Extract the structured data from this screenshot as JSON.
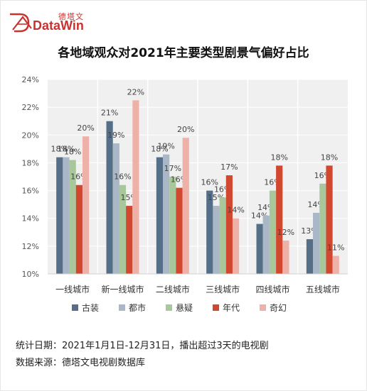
{
  "brand": {
    "name_cn": "德塔文",
    "name_en": "DataWin",
    "color": "#c8322f"
  },
  "title": "各地域观众对2021年主要类型剧景气偏好占比",
  "chart_data": {
    "type": "bar",
    "categories": [
      "一线城市",
      "新一线城市",
      "二线城市",
      "三线城市",
      "四线城市",
      "五线城市"
    ],
    "series": [
      {
        "name": "古装",
        "color": "#546f87",
        "values": [
          18.4,
          21.0,
          18.4,
          16.0,
          13.6,
          12.5
        ],
        "labels": [
          "18%",
          "21%",
          "18%",
          "16%",
          "14%",
          "13%"
        ]
      },
      {
        "name": "都市",
        "color": "#a9b7c6",
        "values": [
          18.4,
          19.4,
          18.6,
          14.9,
          14.2,
          14.4
        ],
        "labels": [
          "18%",
          "19%",
          "19%",
          "15%",
          "14%",
          "14%"
        ]
      },
      {
        "name": "悬疑",
        "color": "#a8c79a",
        "values": [
          18.2,
          16.4,
          17.0,
          15.5,
          16.0,
          16.5
        ],
        "labels": [
          "18%",
          "16%",
          "17%",
          "16%",
          "16%",
          "16%"
        ]
      },
      {
        "name": "年代",
        "color": "#d2482e",
        "values": [
          16.4,
          14.9,
          16.2,
          17.1,
          17.8,
          17.8
        ],
        "labels": [
          "16%",
          "15%",
          "16%",
          "17%",
          "18%",
          "18%"
        ]
      },
      {
        "name": "奇幻",
        "color": "#efb1a7",
        "values": [
          19.9,
          22.5,
          19.8,
          14.0,
          12.4,
          11.3
        ],
        "labels": [
          "20%",
          "22%",
          "20%",
          "14%",
          "12%",
          "11%"
        ]
      }
    ],
    "yticks": [
      "10%",
      "12%",
      "14%",
      "16%",
      "18%",
      "20%",
      "22%",
      "24%"
    ],
    "ylim": [
      10,
      24
    ],
    "grid": true,
    "legend": "bottom",
    "background": "#f0f0f0"
  },
  "footer": {
    "line1": "统计日期：2021年1月1日-12月31日，播出超过3天的电视剧",
    "line2": "数据来源：德塔文电视剧数据库"
  }
}
